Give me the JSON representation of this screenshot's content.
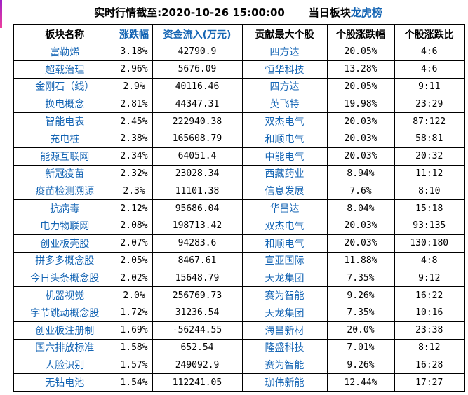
{
  "page": {
    "title_prefix": "实时行情截至:2020-10-26 15:00:00",
    "board_label": "当日板块",
    "board_link_label": "龙虎榜",
    "colors": {
      "link_blue": "#1565b4",
      "text_black": "#000000",
      "table_border": "#000000",
      "accent_bar_top": "#9f1fc6",
      "accent_bar_bottom": "#ee3f9e"
    }
  },
  "table": {
    "headers": [
      {
        "label": "板块名称",
        "accent": false
      },
      {
        "label": "涨跌幅",
        "accent": true
      },
      {
        "label": "资金流入(万元)",
        "accent": true
      },
      {
        "label": "贡献最大个股",
        "accent": false
      },
      {
        "label": "个股涨跌幅",
        "accent": false
      },
      {
        "label": "个股涨跌比",
        "accent": false
      }
    ],
    "rows": [
      {
        "sector": "富勒烯",
        "change": "3.18%",
        "inflow": "42790.9",
        "stock": "四方达",
        "stock_change": "20.05%",
        "ratio": "4:6"
      },
      {
        "sector": "超载治理",
        "change": "2.96%",
        "inflow": "5676.09",
        "stock": "恒华科技",
        "stock_change": "13.28%",
        "ratio": "4:6"
      },
      {
        "sector": "金刚石（线）",
        "change": "2.9%",
        "inflow": "40116.46",
        "stock": "四方达",
        "stock_change": "20.05%",
        "ratio": "9:11"
      },
      {
        "sector": "换电概念",
        "change": "2.81%",
        "inflow": "44347.31",
        "stock": "英飞特",
        "stock_change": "19.98%",
        "ratio": "23:29"
      },
      {
        "sector": "智能电表",
        "change": "2.45%",
        "inflow": "222940.38",
        "stock": "双杰电气",
        "stock_change": "20.03%",
        "ratio": "87:122"
      },
      {
        "sector": "充电桩",
        "change": "2.38%",
        "inflow": "165608.79",
        "stock": "和顺电气",
        "stock_change": "20.03%",
        "ratio": "58:81"
      },
      {
        "sector": "能源互联网",
        "change": "2.34%",
        "inflow": "64051.4",
        "stock": "中能电气",
        "stock_change": "20.03%",
        "ratio": "20:32"
      },
      {
        "sector": "新冠疫苗",
        "change": "2.32%",
        "inflow": "23028.34",
        "stock": "西藏药业",
        "stock_change": "8.94%",
        "ratio": "11:12"
      },
      {
        "sector": "疫苗检测溯源",
        "change": "2.3%",
        "inflow": "11101.38",
        "stock": "信息发展",
        "stock_change": "7.6%",
        "ratio": "8:10"
      },
      {
        "sector": "抗病毒",
        "change": "2.12%",
        "inflow": "95686.04",
        "stock": "华昌达",
        "stock_change": "8.04%",
        "ratio": "15:18"
      },
      {
        "sector": "电力物联网",
        "change": "2.08%",
        "inflow": "198713.42",
        "stock": "双杰电气",
        "stock_change": "20.03%",
        "ratio": "93:135"
      },
      {
        "sector": "创业板壳股",
        "change": "2.07%",
        "inflow": "94283.6",
        "stock": "和顺电气",
        "stock_change": "20.03%",
        "ratio": "130:180"
      },
      {
        "sector": "拼多多概念股",
        "change": "2.05%",
        "inflow": "8467.61",
        "stock": "宣亚国际",
        "stock_change": "11.88%",
        "ratio": "4:8"
      },
      {
        "sector": "今日头条概念股",
        "change": "2.02%",
        "inflow": "15648.79",
        "stock": "天龙集团",
        "stock_change": "7.35%",
        "ratio": "9:12"
      },
      {
        "sector": "机器视觉",
        "change": "2.0%",
        "inflow": "256769.73",
        "stock": "赛为智能",
        "stock_change": "9.26%",
        "ratio": "16:22"
      },
      {
        "sector": "字节跳动概念股",
        "change": "1.72%",
        "inflow": "31236.54",
        "stock": "天龙集团",
        "stock_change": "7.35%",
        "ratio": "10:16"
      },
      {
        "sector": "创业板注册制",
        "change": "1.69%",
        "inflow": "-56244.55",
        "stock": "海昌新材",
        "stock_change": "20.0%",
        "ratio": "23:38"
      },
      {
        "sector": "国六排放标准",
        "change": "1.58%",
        "inflow": "652.54",
        "stock": "隆盛科技",
        "stock_change": "7.01%",
        "ratio": "8:12"
      },
      {
        "sector": "人脸识别",
        "change": "1.57%",
        "inflow": "249092.9",
        "stock": "赛为智能",
        "stock_change": "9.26%",
        "ratio": "16:28"
      },
      {
        "sector": "无钴电池",
        "change": "1.54%",
        "inflow": "112241.05",
        "stock": "珈伟新能",
        "stock_change": "12.44%",
        "ratio": "17:27"
      }
    ]
  }
}
